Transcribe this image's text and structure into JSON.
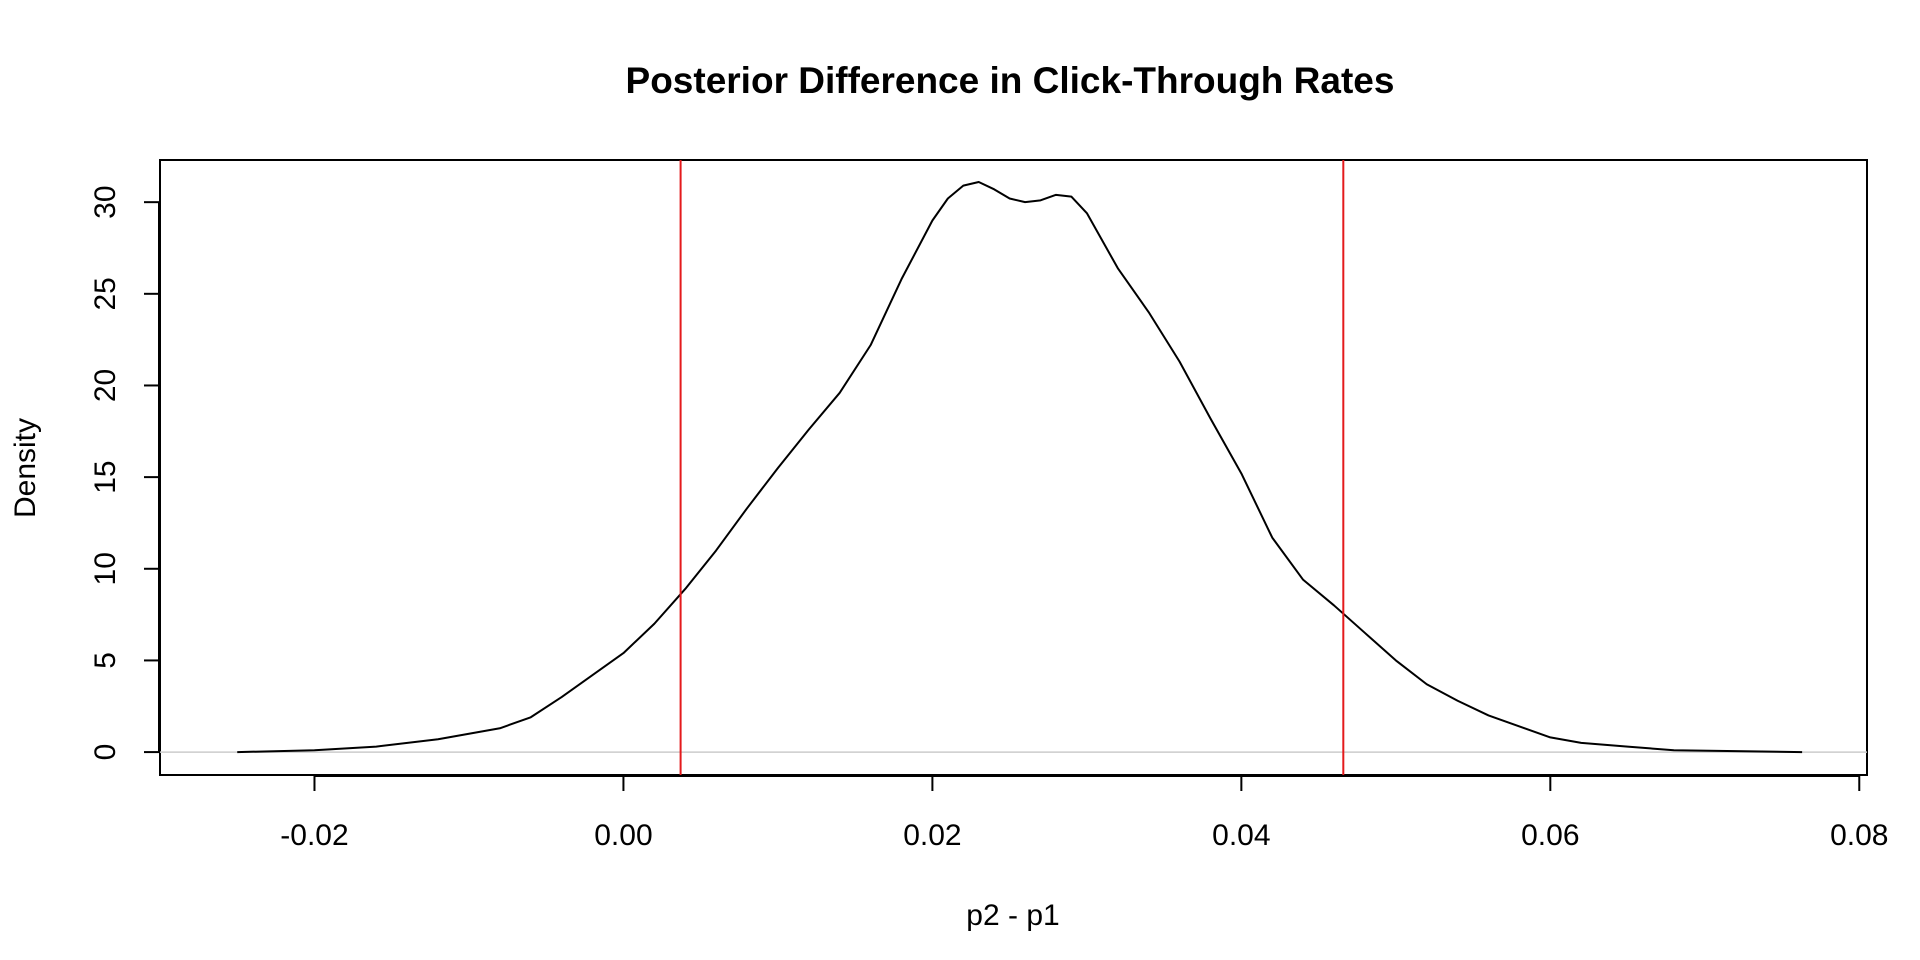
{
  "chart_data": {
    "type": "line",
    "title": "Posterior Difference in Click-Through Rates",
    "xlabel": "p2 - p1",
    "ylabel": "Density",
    "xlim": [
      -0.03,
      0.0805
    ],
    "ylim": [
      -1.25,
      32.3
    ],
    "x_ticks": [
      -0.02,
      0.0,
      0.02,
      0.04,
      0.06,
      0.08
    ],
    "x_tick_labels": [
      "-0.02",
      "0.00",
      "0.02",
      "0.04",
      "0.06",
      "0.08"
    ],
    "y_ticks": [
      0,
      5,
      10,
      15,
      20,
      25,
      30
    ],
    "y_tick_labels": [
      "0",
      "5",
      "10",
      "15",
      "20",
      "25",
      "30"
    ],
    "grid": false,
    "baseline": {
      "y": 0,
      "color": "#cccccc"
    },
    "reference_lines": [
      {
        "x": 0.0037,
        "color": "#e41a1c"
      },
      {
        "x": 0.0466,
        "color": "#e41a1c"
      }
    ],
    "series": [
      {
        "color": "#000000",
        "x": [
          -0.025,
          -0.02,
          -0.016,
          -0.012,
          -0.008,
          -0.006,
          -0.004,
          -0.002,
          0.0,
          0.002,
          0.004,
          0.006,
          0.008,
          0.01,
          0.012,
          0.014,
          0.016,
          0.018,
          0.02,
          0.021,
          0.022,
          0.023,
          0.024,
          0.025,
          0.026,
          0.027,
          0.028,
          0.029,
          0.03,
          0.032,
          0.034,
          0.036,
          0.038,
          0.04,
          0.042,
          0.044,
          0.046,
          0.048,
          0.05,
          0.052,
          0.054,
          0.056,
          0.058,
          0.06,
          0.062,
          0.065,
          0.068,
          0.072,
          0.0763
        ],
        "y": [
          0.0,
          0.1,
          0.3,
          0.7,
          1.3,
          1.9,
          3.0,
          4.2,
          5.4,
          7.0,
          8.9,
          11.0,
          13.3,
          15.5,
          17.6,
          19.6,
          22.2,
          25.8,
          29.0,
          30.2,
          30.9,
          31.1,
          30.7,
          30.2,
          30.0,
          30.1,
          30.4,
          30.3,
          29.4,
          26.4,
          24.0,
          21.3,
          18.2,
          15.2,
          11.7,
          9.4,
          8.0,
          6.5,
          5.0,
          3.7,
          2.8,
          2.0,
          1.4,
          0.8,
          0.5,
          0.3,
          0.1,
          0.05,
          0.0
        ]
      }
    ]
  }
}
